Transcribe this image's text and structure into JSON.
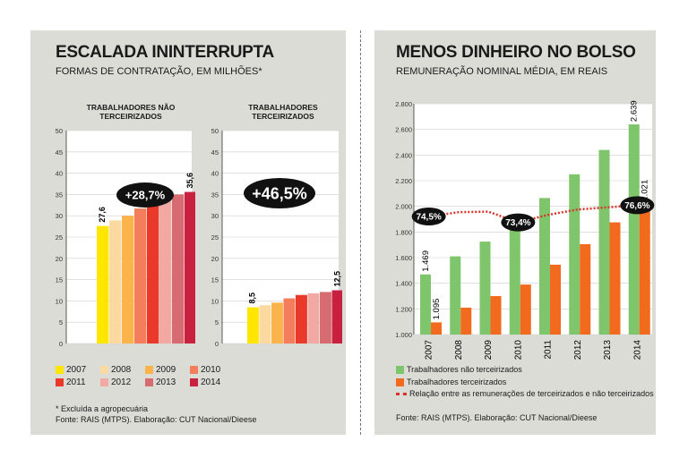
{
  "left": {
    "title": "ESCALADA ININTERRUPTA",
    "subtitle": "FORMAS DE CONTRATAÇÃO, EM MILHÕES*",
    "footnote": "* Excluída a agropecuária",
    "source": "Fonte: RAIS (MTPS). Elaboração: CUT Nacional/Dieese"
  },
  "right": {
    "title": "MENOS DINHEIRO NO BOLSO",
    "subtitle": "REMUNERAÇÃO NOMINAL MÉDIA, EM REAIS",
    "source": "Fonte: RAIS (MTPS). Elaboração: CUT Nacional/Dieese"
  },
  "chart_data": [
    {
      "type": "bar",
      "title": "TRABALHADORES NÃO TERCEIRIZADOS",
      "categories": [
        "2007",
        "2008",
        "2009",
        "2010",
        "2011",
        "2012",
        "2013",
        "2014"
      ],
      "values": [
        27.6,
        28.9,
        30.0,
        31.7,
        33.0,
        34.0,
        35.0,
        35.6
      ],
      "data_labels": {
        "2007": "27,6",
        "2014": "35,6"
      },
      "annotation": "+28,7%",
      "yticks": [
        "0",
        "5",
        "10",
        "15",
        "20",
        "25",
        "30",
        "35",
        "40",
        "45",
        "50"
      ],
      "ylim": [
        0,
        50
      ],
      "colors": [
        "#ffe600",
        "#fcd9a0",
        "#fbb34c",
        "#f47d5c",
        "#e8392a",
        "#f2a8a3",
        "#d66c72",
        "#c8203f"
      ]
    },
    {
      "type": "bar",
      "title": "TRABALHADORES TERCEIRIZADOS",
      "categories": [
        "2007",
        "2008",
        "2009",
        "2010",
        "2011",
        "2012",
        "2013",
        "2014"
      ],
      "values": [
        8.5,
        9.0,
        9.6,
        10.6,
        11.4,
        11.8,
        12.1,
        12.5
      ],
      "data_labels": {
        "2007": "8,5",
        "2014": "12,5"
      },
      "annotation": "+46,5%",
      "yticks": [
        "0",
        "5",
        "10",
        "15",
        "20",
        "25",
        "30",
        "35",
        "40",
        "45",
        "50"
      ],
      "ylim": [
        0,
        50
      ],
      "colors": [
        "#ffe600",
        "#fcd9a0",
        "#fbb34c",
        "#f47d5c",
        "#e8392a",
        "#f2a8a3",
        "#d66c72",
        "#c8203f"
      ],
      "legend": [
        "2007",
        "2008",
        "2009",
        "2010",
        "2011",
        "2012",
        "2013",
        "2014"
      ]
    },
    {
      "type": "bar",
      "categories": [
        "2007",
        "2008",
        "2009",
        "2010",
        "2011",
        "2012",
        "2013",
        "2014"
      ],
      "series": [
        {
          "name": "Trabalhadores não terceirizados",
          "values": [
            1469,
            1610,
            1725,
            1870,
            2065,
            2250,
            2440,
            2639
          ],
          "color": "#7fc56b"
        },
        {
          "name": "Trabalhadores terceirizados",
          "values": [
            1095,
            1210,
            1300,
            1390,
            1545,
            1705,
            1875,
            2021
          ],
          "color": "#f26a1d"
        }
      ],
      "data_labels": {
        "nao_2007": "1.469",
        "terc_2007": "1.095",
        "nao_2014": "2.639",
        "terc_2014": "2.021"
      },
      "line_series": {
        "name": "Relação entre as remunerações de terceirizados e não terceirizados",
        "values": [
          74.5,
          75.3,
          75.4,
          73.4,
          74.8,
          75.8,
          76.2,
          76.6
        ],
        "color": "#d9342b"
      },
      "line_labels": {
        "2007": "74,5%",
        "2010": "73,4%",
        "2014": "76,6%"
      },
      "yticks": [
        "1.000",
        "1.200",
        "1.400",
        "1.600",
        "1.800",
        "2.000",
        "2.200",
        "2.400",
        "2.600",
        "2.800"
      ],
      "ylim": [
        1000,
        2800
      ]
    }
  ]
}
